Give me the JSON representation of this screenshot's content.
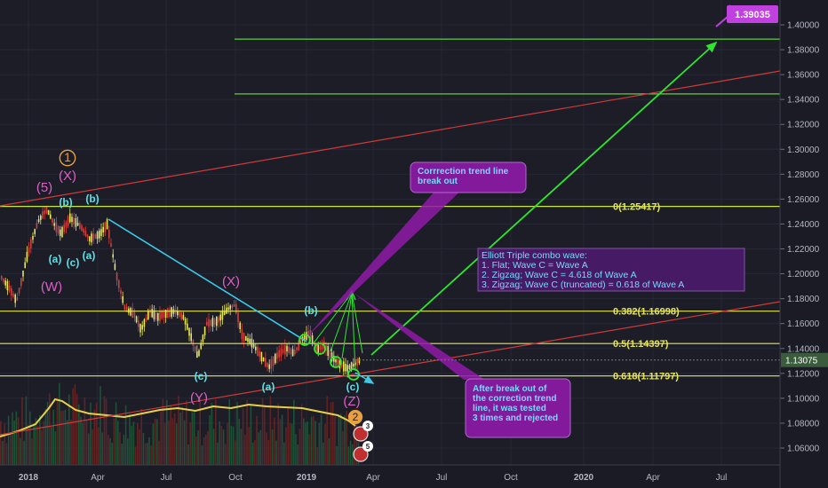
{
  "chart_data": {
    "type": "candlestick",
    "instrument_hint": "",
    "current_price": "1.13075",
    "target_price": "1.39035",
    "price_axis": {
      "min": 1.05,
      "max": 1.42,
      "ticks": [
        "1.40000",
        "1.38000",
        "1.36000",
        "1.34000",
        "1.32000",
        "1.30000",
        "1.28000",
        "1.26000",
        "1.24000",
        "1.22000",
        "1.20000",
        "1.18000",
        "1.16000",
        "1.14000",
        "1.12000",
        "1.10000",
        "1.08000",
        "1.06000"
      ]
    },
    "time_axis": {
      "labels": [
        "2018",
        "Apr",
        "Jul",
        "Oct",
        "2019",
        "Apr",
        "Jul",
        "Oct",
        "2020",
        "Apr",
        "Jul"
      ],
      "bold": [
        "2018",
        "2019",
        "2020"
      ]
    },
    "fib_levels": [
      {
        "label": "0(1.25417)",
        "value": 1.25417
      },
      {
        "label": "0.382(1.16998)",
        "value": 1.16998
      },
      {
        "label": "0.5(1.14397)",
        "value": 1.14397
      },
      {
        "label": "0.618(1.11797)",
        "value": 1.11797
      }
    ],
    "target_zone_lines": [
      1.3885,
      1.3445
    ],
    "wave_labels": [
      {
        "text": "1",
        "role": "circled"
      },
      {
        "text": "(X)"
      },
      {
        "text": "(5)"
      },
      {
        "text": "(b)"
      },
      {
        "text": "(b)"
      },
      {
        "text": "(a)"
      },
      {
        "text": "(c)"
      },
      {
        "text": "(a)"
      },
      {
        "text": "(W)"
      },
      {
        "text": "(X)"
      },
      {
        "text": "(b)"
      },
      {
        "text": "(c)"
      },
      {
        "text": "(Y)"
      },
      {
        "text": "(a)"
      },
      {
        "text": "(c)"
      },
      {
        "text": "(Z)"
      },
      {
        "text": "2",
        "role": "circled"
      }
    ],
    "annotations": {
      "correction_note": "Corrrection trend line break out",
      "elliott_title": "Elliott Triple combo wave:",
      "elliott_items": [
        "1. Flat; Wave C = Wave A",
        "2. Zigzag; Wave C = 4.618 of Wave A",
        "3. Zigzag; Wave C (truncated) = 0.618 of Wave A"
      ],
      "after_break_note": "After break out of the correction trend line, it was tested 3 times and rejected"
    },
    "event_badges": [
      "3",
      "5"
    ],
    "colors": {
      "background": "#1c1d27",
      "fib": "#e6e65a",
      "target_zone": "#5fd035",
      "trend_red": "#d03a3a",
      "trend_cyan": "#3cc8e6",
      "green_arrow": "#2ee62e",
      "wave_pink": "#e05ec8",
      "wave_cyan": "#5ce0e6",
      "wave_orange": "#e8a040",
      "callout_bg": "#8e1aa8",
      "callout_text": "#7ad8ff",
      "price_tag": "#3a5c3c"
    }
  }
}
